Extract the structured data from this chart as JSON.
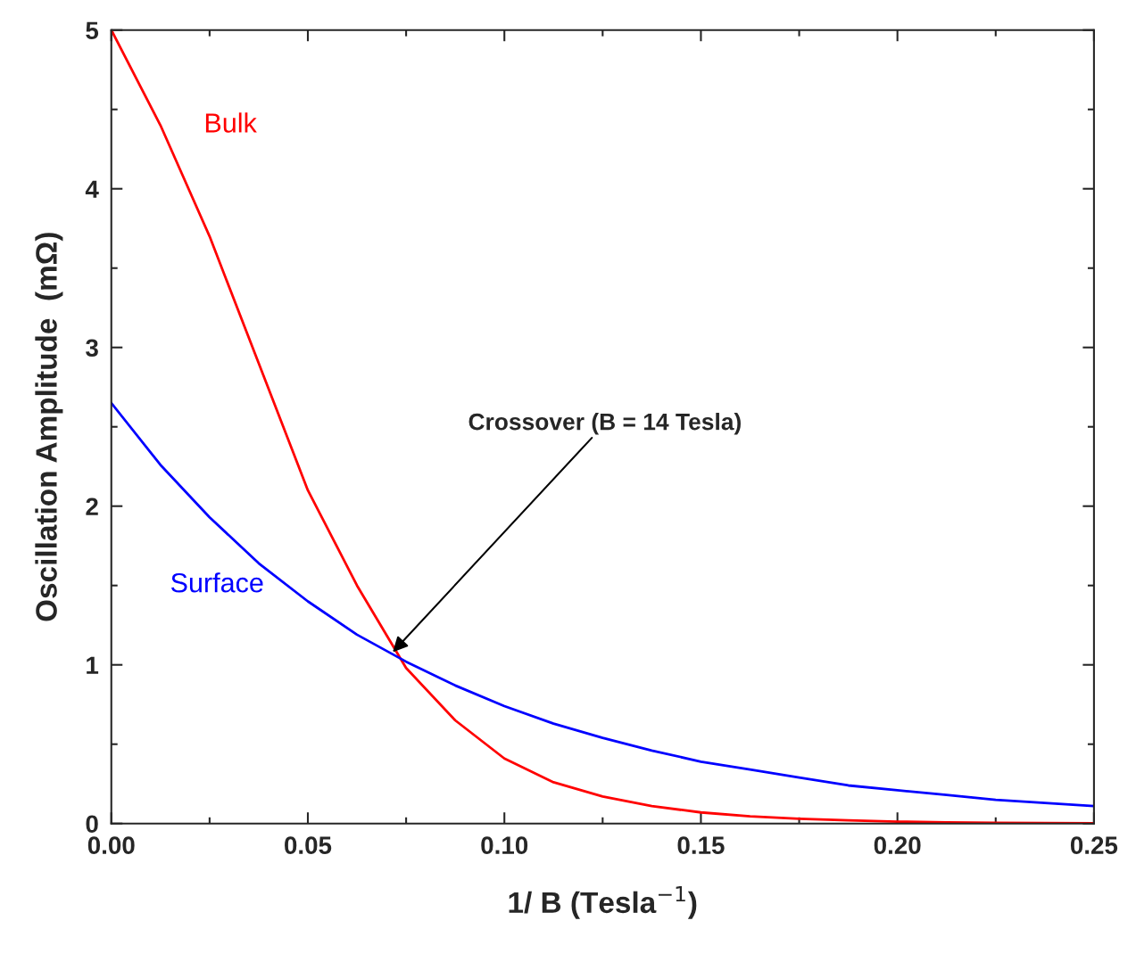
{
  "chart_data": {
    "type": "line",
    "xlabel": "1/ B (Tesla$^{−1}$)",
    "ylabel": "Oscillation Amplitude  (mΩ)",
    "x": [
      0,
      0.0125,
      0.025,
      0.0375,
      0.05,
      0.0625,
      0.075,
      0.0875,
      0.1,
      0.1125,
      0.125,
      0.1375,
      0.15,
      0.1625,
      0.175,
      0.1875,
      0.2,
      0.2125,
      0.225,
      0.2375,
      0.25
    ],
    "series": [
      {
        "name": "Bulk",
        "color": "#ff0000",
        "values": [
          5.0,
          4.4,
          3.7,
          2.9,
          2.1,
          1.5,
          0.98,
          0.65,
          0.41,
          0.26,
          0.17,
          0.11,
          0.07,
          0.045,
          0.03,
          0.02,
          0.012,
          0.008,
          0.005,
          0.003,
          0.002
        ]
      },
      {
        "name": "Surface",
        "color": "#0000ff",
        "values": [
          2.65,
          2.26,
          1.93,
          1.64,
          1.4,
          1.19,
          1.02,
          0.87,
          0.74,
          0.63,
          0.54,
          0.46,
          0.39,
          0.34,
          0.29,
          0.24,
          0.21,
          0.18,
          0.15,
          0.13,
          0.11
        ]
      }
    ],
    "annotations": [
      {
        "text": "Crossover (B = 14 Tesla)",
        "x": 0.0716,
        "y": 1.08
      }
    ],
    "xlim": [
      0,
      0.25
    ],
    "ylim": [
      0,
      5
    ],
    "xticks": [
      {
        "value": 0,
        "label": "0.00"
      },
      {
        "value": 0.05,
        "label": "0.05"
      },
      {
        "value": 0.1,
        "label": "0.10"
      },
      {
        "value": 0.15,
        "label": "0.15"
      },
      {
        "value": 0.2,
        "label": "0.20"
      },
      {
        "value": 0.25,
        "label": "0.25"
      }
    ],
    "yticks": [
      0,
      1,
      2,
      3,
      4,
      5
    ],
    "grid": false,
    "legend": false,
    "marker": "none",
    "line_style": "solid"
  }
}
